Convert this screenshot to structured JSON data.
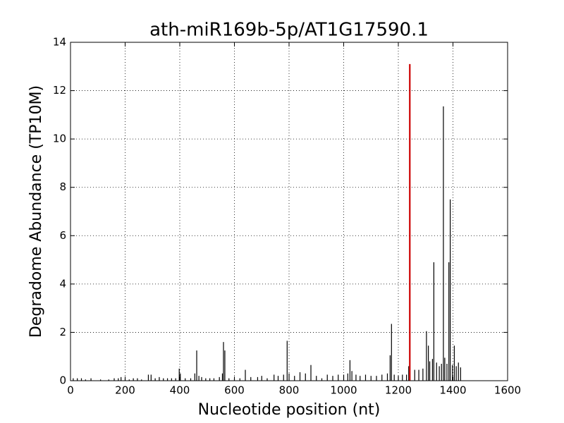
{
  "chart_data": {
    "type": "stem",
    "title": "ath-miR169b-5p/AT1G17590.1",
    "x_label": "Nucleotide position (nt)",
    "y_label": "Degradome Abundance (TP10M)",
    "xlim": [
      0,
      1600
    ],
    "xticks": [
      0,
      200,
      400,
      600,
      800,
      1000,
      1200,
      1400,
      1600
    ],
    "ylim": [
      0,
      14
    ],
    "yticks": [
      0,
      2,
      4,
      6,
      8,
      10,
      12,
      14
    ],
    "grid": true,
    "series": [
      {
        "color": "#000000",
        "x": [
          10,
          25,
          40,
          55,
          75,
          110,
          140,
          160,
          175,
          185,
          200,
          215,
          230,
          245,
          260,
          285,
          295,
          310,
          325,
          340,
          355,
          370,
          385,
          398,
          402,
          420,
          440,
          455,
          462,
          470,
          480,
          495,
          510,
          525,
          545,
          556,
          560,
          565,
          580,
          600,
          620,
          640,
          660,
          685,
          700,
          720,
          745,
          760,
          780,
          793,
          800,
          820,
          840,
          860,
          880,
          900,
          920,
          940,
          960,
          980,
          1000,
          1015,
          1023,
          1030,
          1045,
          1060,
          1080,
          1100,
          1120,
          1140,
          1160,
          1170,
          1175,
          1185,
          1200,
          1215,
          1230,
          1238,
          1260,
          1275,
          1290,
          1303,
          1310,
          1315,
          1325,
          1330,
          1340,
          1350,
          1358,
          1365,
          1370,
          1378,
          1385,
          1390,
          1398,
          1405,
          1412,
          1420,
          1428
        ],
        "values": [
          0.1,
          0.1,
          0.1,
          0.05,
          0.1,
          0.05,
          0.05,
          0.1,
          0.1,
          0.15,
          0.1,
          0.05,
          0.1,
          0.1,
          0.05,
          0.25,
          0.25,
          0.1,
          0.15,
          0.1,
          0.1,
          0.1,
          0.1,
          0.5,
          0.3,
          0.1,
          0.1,
          0.3,
          1.25,
          0.2,
          0.15,
          0.1,
          0.1,
          0.1,
          0.15,
          0.3,
          1.6,
          1.25,
          0.1,
          0.1,
          0.1,
          0.45,
          0.15,
          0.15,
          0.2,
          0.1,
          0.25,
          0.2,
          0.25,
          1.65,
          0.3,
          0.2,
          0.35,
          0.3,
          0.65,
          0.2,
          0.1,
          0.25,
          0.2,
          0.25,
          0.25,
          0.3,
          0.85,
          0.4,
          0.25,
          0.2,
          0.25,
          0.2,
          0.2,
          0.25,
          0.3,
          1.05,
          2.35,
          0.25,
          0.2,
          0.25,
          0.25,
          0.6,
          0.45,
          0.45,
          0.5,
          2.05,
          1.45,
          0.8,
          0.9,
          4.9,
          0.75,
          0.6,
          0.7,
          11.35,
          0.95,
          0.7,
          4.9,
          7.5,
          0.65,
          1.45,
          0.6,
          0.75,
          0.55
        ]
      },
      {
        "color": "#cc0000",
        "x": [
          1242
        ],
        "values": [
          13.1
        ]
      }
    ]
  }
}
